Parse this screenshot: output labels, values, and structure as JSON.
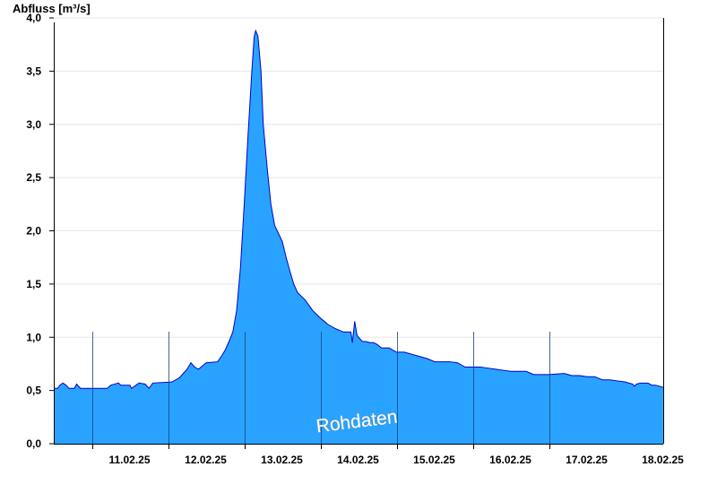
{
  "chart_data": {
    "type": "area",
    "ylabel": "Abfluss [m³/s]",
    "xlabel": "",
    "title": "",
    "watermark": "Rohdaten",
    "ylim": [
      0,
      4.0
    ],
    "yticks": [
      "0,0",
      "0,5",
      "1,0",
      "1,5",
      "2,0",
      "2,5",
      "3,0",
      "3,5",
      "4,0"
    ],
    "yticks_values": [
      0,
      0.5,
      1.0,
      1.5,
      2.0,
      2.5,
      3.0,
      3.5,
      4.0
    ],
    "xlim": [
      "10.02.25 15:00",
      "18.02.25 15:00"
    ],
    "day_labels": [
      "11.02.25",
      "12.02.25",
      "13.02.25",
      "14.02.25",
      "15.02.25",
      "16.02.25",
      "17.02.25",
      "18.02.25"
    ],
    "grid": true,
    "colors": {
      "fill": "#29a3ff",
      "line": "#0000cc",
      "grid": "#e6e6e6",
      "divider": "#1a3f80"
    },
    "series": [
      {
        "x": [
          0,
          0.05,
          0.08,
          0.12,
          0.16,
          0.2,
          0.27,
          0.3,
          0.35,
          0.7,
          0.75,
          0.85,
          0.88,
          1.0,
          1.02,
          1.08,
          1.12,
          1.2,
          1.25,
          1.3,
          1.55,
          1.65,
          1.7,
          1.75,
          1.8,
          1.85,
          1.9,
          2.0,
          2.15,
          2.2,
          2.25,
          2.3,
          2.35,
          2.4,
          2.45,
          2.5,
          2.55,
          2.6,
          2.63,
          2.65,
          2.68,
          2.72,
          2.75,
          2.8,
          2.85,
          2.9,
          3.0,
          3.05,
          3.1,
          3.15,
          3.2,
          3.3,
          3.4,
          3.5,
          3.55,
          3.6,
          3.65,
          3.7,
          3.8,
          3.9,
          3.92,
          3.95,
          3.98,
          4.0,
          4.05,
          4.1,
          4.15,
          4.2,
          4.25,
          4.3,
          4.4,
          4.5,
          4.6,
          4.7,
          4.8,
          4.9,
          5.0,
          5.1,
          5.2,
          5.3,
          5.35,
          5.4,
          5.45,
          5.5,
          5.6,
          5.7,
          5.8,
          5.9,
          6.0,
          6.2,
          6.3,
          6.5,
          6.7,
          6.8,
          6.9,
          7.0,
          7.1,
          7.2,
          7.3,
          7.4,
          7.5,
          7.6,
          7.62,
          7.65,
          7.7,
          7.8,
          7.85,
          7.9,
          8.0
        ],
        "y": [
          0.52,
          0.52,
          0.55,
          0.57,
          0.55,
          0.52,
          0.52,
          0.56,
          0.52,
          0.52,
          0.55,
          0.57,
          0.55,
          0.55,
          0.52,
          0.55,
          0.57,
          0.56,
          0.52,
          0.57,
          0.58,
          0.62,
          0.66,
          0.7,
          0.76,
          0.72,
          0.7,
          0.76,
          0.77,
          0.82,
          0.88,
          0.96,
          1.05,
          1.25,
          1.65,
          2.25,
          2.9,
          3.5,
          3.82,
          3.88,
          3.83,
          3.5,
          3.0,
          2.6,
          2.25,
          2.05,
          1.9,
          1.75,
          1.62,
          1.5,
          1.42,
          1.35,
          1.25,
          1.18,
          1.15,
          1.12,
          1.1,
          1.08,
          1.05,
          1.05,
          0.95,
          1.15,
          1.02,
          1.0,
          0.96,
          0.96,
          0.95,
          0.95,
          0.93,
          0.9,
          0.9,
          0.86,
          0.86,
          0.84,
          0.82,
          0.8,
          0.77,
          0.77,
          0.77,
          0.76,
          0.74,
          0.72,
          0.72,
          0.72,
          0.72,
          0.71,
          0.7,
          0.69,
          0.68,
          0.68,
          0.65,
          0.65,
          0.66,
          0.64,
          0.64,
          0.63,
          0.63,
          0.6,
          0.6,
          0.59,
          0.58,
          0.56,
          0.54,
          0.56,
          0.57,
          0.57,
          0.55,
          0.55,
          0.53
        ]
      }
    ]
  }
}
